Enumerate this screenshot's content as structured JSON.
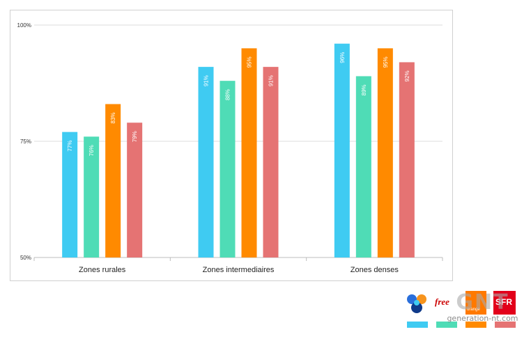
{
  "chart_data": {
    "type": "bar",
    "categories": [
      "Zones rurales",
      "Zones intermediaires",
      "Zones denses"
    ],
    "series": [
      {
        "values": [
          77,
          91,
          96
        ],
        "labels": [
          "77%",
          "91%",
          "96%"
        ],
        "color": "#3fcbf2"
      },
      {
        "values": [
          76,
          88,
          89
        ],
        "labels": [
          "76%",
          "88%",
          "89%"
        ],
        "color": "#4fdcb6"
      },
      {
        "values": [
          83,
          95,
          95
        ],
        "labels": [
          "83%",
          "95%",
          "95%"
        ],
        "color": "#ff8a00"
      },
      {
        "values": [
          79,
          91,
          92
        ],
        "labels": [
          "79%",
          "91%",
          "92%"
        ],
        "color": "#e57373"
      }
    ],
    "ylim": [
      50,
      100
    ],
    "yticks": [
      {
        "value": 100,
        "label": "100%"
      },
      {
        "value": 75,
        "label": "75%"
      },
      {
        "value": 50,
        "label": "50%"
      }
    ],
    "grid": true,
    "legend": "bottom-right logos"
  },
  "legend_logos": {
    "free_label": "free",
    "orange_label": "orange",
    "sfr_label": "SFR",
    "colors": {
      "bouygues": "#3fcbf2",
      "free": "#4fdcb6",
      "orange": "#ff8a00",
      "sfr": "#e57373"
    }
  },
  "watermark": {
    "main": "GNT",
    "site": "generation-nt.com"
  }
}
